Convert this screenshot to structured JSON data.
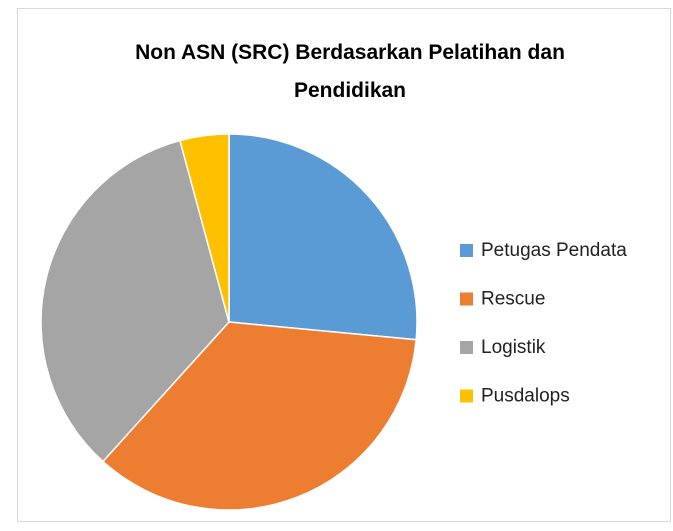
{
  "chart_data": {
    "type": "pie",
    "title": "Non ASN (SRC) Berdasarkan Pelatihan dan Pendidikan",
    "categories": [
      "Petugas Pendata",
      "Rescue",
      "Logistik",
      "Pusdalops"
    ],
    "values": [
      26.5,
      35.2,
      34.1,
      4.2
    ],
    "colors": [
      "#5b9bd5",
      "#ed7d31",
      "#a5a5a5",
      "#ffc000"
    ],
    "legend": "right"
  }
}
